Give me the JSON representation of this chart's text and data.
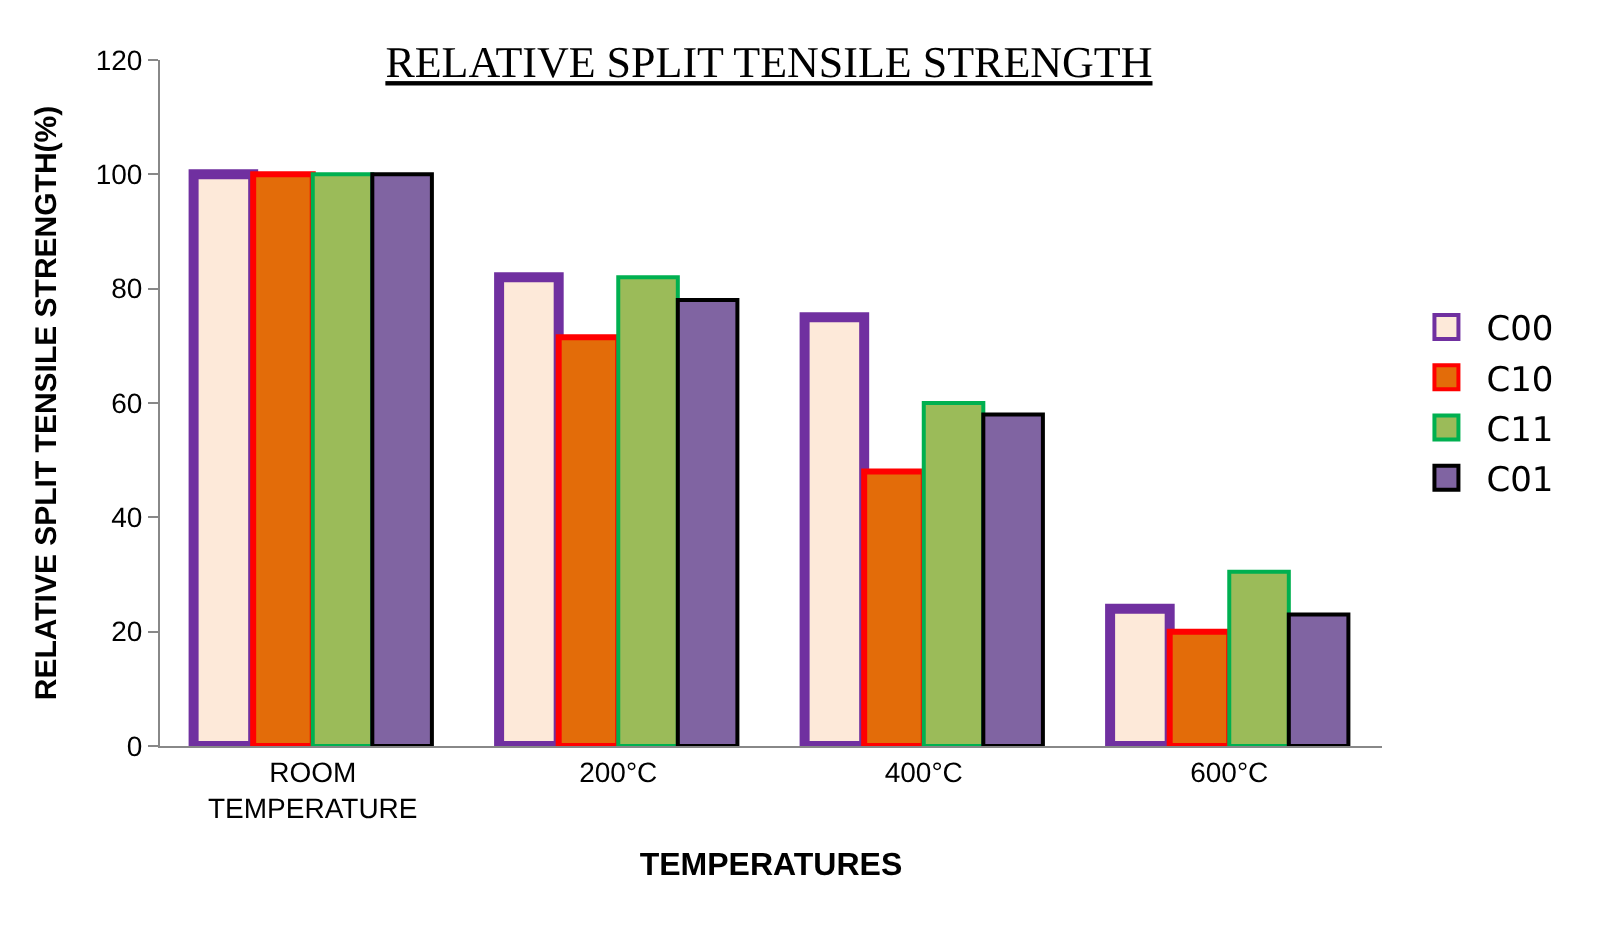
{
  "chart_data": {
    "type": "bar",
    "title": "RELATIVE SPLIT TENSILE STRENGTH",
    "xlabel": "TEMPERATURES",
    "ylabel": "RELATIVE SPLIT TENSILE STRENGTH(%)",
    "categories": [
      "ROOM TEMPERATURE",
      "200°C",
      "400°C",
      "600°C"
    ],
    "series": [
      {
        "name": "C00",
        "color": "#fde9d9",
        "values": [
          100,
          82,
          75,
          24
        ]
      },
      {
        "name": "C10",
        "color": "#e36c09",
        "values": [
          100,
          71.5,
          48,
          20
        ]
      },
      {
        "name": "C11",
        "color": "#9bbb59",
        "values": [
          100,
          82,
          60,
          30.5
        ]
      },
      {
        "name": "C01",
        "color": "#8064a2",
        "values": [
          100,
          78,
          58,
          23
        ]
      }
    ],
    "ylim": [
      0,
      120
    ],
    "yticks": [
      0,
      20,
      40,
      60,
      80,
      100,
      120
    ],
    "legend": "right"
  }
}
